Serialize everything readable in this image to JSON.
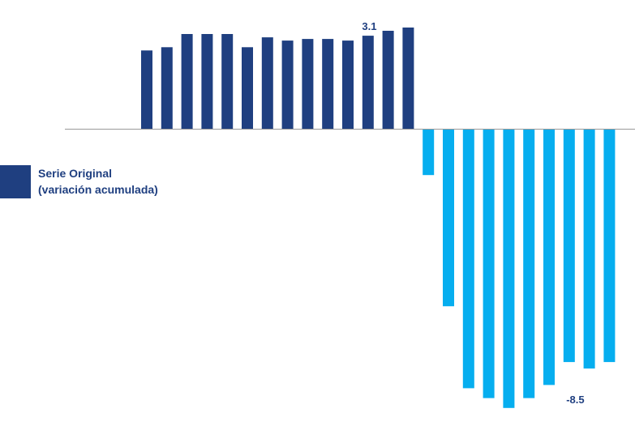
{
  "colors": {
    "original": "#1f3f80",
    "decline": "#06aeef",
    "axis": "#999999",
    "text": "#1f3f80"
  },
  "legend": {
    "line1": "Serie Original",
    "line2": "(variación acumulada)"
  },
  "chart_data": {
    "type": "bar",
    "title": "",
    "xlabel": "",
    "ylabel": "",
    "ylim": [
      -8.5,
      3.1
    ],
    "grid": false,
    "legend_position": "left",
    "series": [
      {
        "name": "Serie Original (variación acumulada)",
        "values": [
          2.4,
          2.5,
          2.9,
          2.9,
          2.9,
          2.5,
          2.8,
          2.7,
          2.75,
          2.75,
          2.7,
          2.85,
          3.0,
          3.1,
          -1.4,
          -5.4,
          -7.9,
          -8.2,
          -8.5,
          -8.2,
          -7.8,
          -7.1,
          -7.3,
          -7.1
        ]
      }
    ],
    "data_labels": [
      {
        "index": 13,
        "text": "3.1"
      },
      {
        "index": 18,
        "text": "-8.5"
      }
    ]
  }
}
